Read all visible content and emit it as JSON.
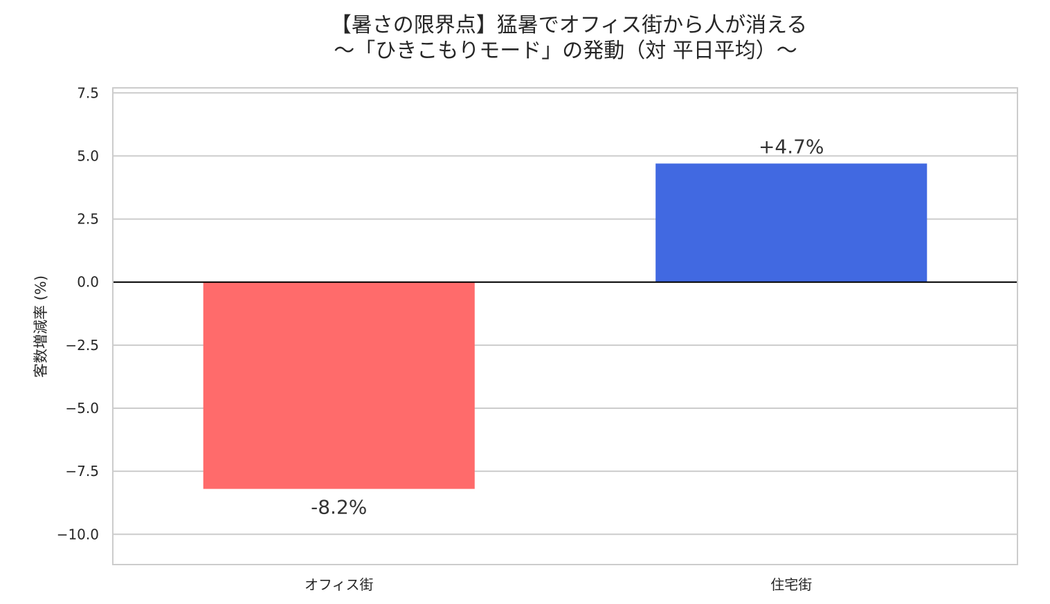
{
  "chart_data": {
    "type": "bar",
    "title_lines": [
      "【暑さの限界点】猛暑でオフィス街から人が消える",
      "〜「ひきこもりモード」の発動（対 平日平均）〜"
    ],
    "xlabel": "",
    "ylabel": "客数増減率 (%)",
    "categories": [
      "オフィス街",
      "住宅街"
    ],
    "values": [
      -8.2,
      4.7
    ],
    "data_labels": [
      "-8.2%",
      "+4.7%"
    ],
    "bar_colors": [
      "#ff6b6b",
      "#4169e1"
    ],
    "ylim": [
      -11.2,
      7.7
    ],
    "yticks": [
      7.5,
      5.0,
      2.5,
      0.0,
      -2.5,
      -5.0,
      -7.5,
      -10.0
    ],
    "ytick_labels": [
      "7.5",
      "5.0",
      "2.5",
      "0.0",
      "−2.5",
      "−5.0",
      "−7.5",
      "−10.0"
    ],
    "grid": true,
    "zero_line": true
  }
}
